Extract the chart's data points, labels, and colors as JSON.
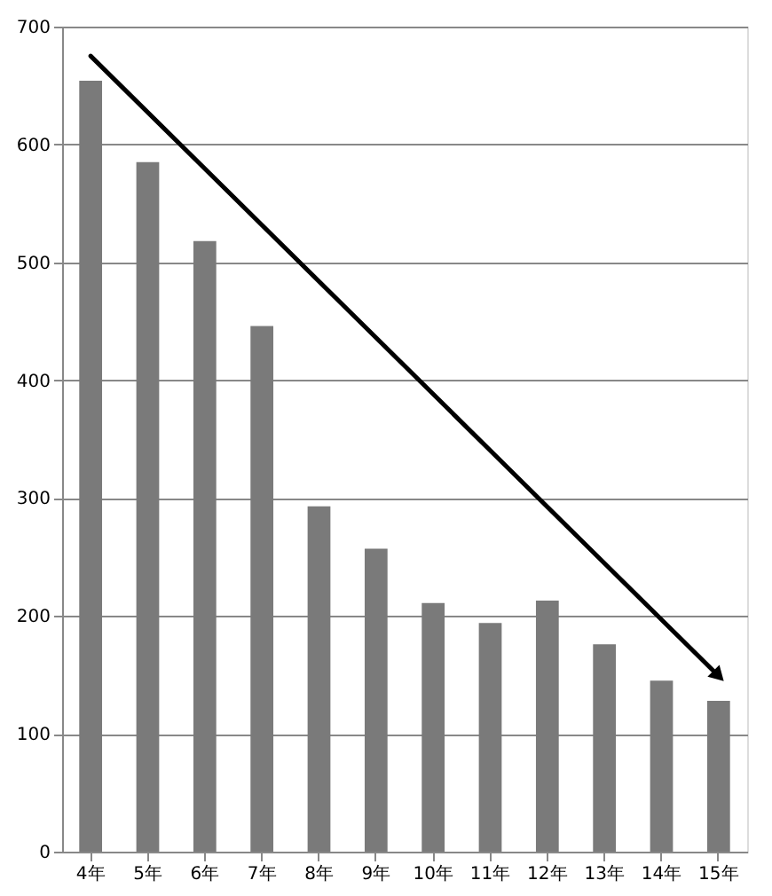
{
  "chart_data": {
    "type": "bar",
    "categories": [
      "4年",
      "5年",
      "6年",
      "7年",
      "8年",
      "9年",
      "10年",
      "11年",
      "12年",
      "13年",
      "14年",
      "15年"
    ],
    "values": [
      654,
      585,
      518,
      446,
      293,
      257,
      211,
      194,
      213,
      176,
      145,
      128
    ],
    "color": "#7a7a7a",
    "ylim": [
      0,
      700
    ],
    "yticks": [
      0,
      100,
      200,
      300,
      400,
      500,
      600,
      700
    ],
    "grid": "y"
  }
}
